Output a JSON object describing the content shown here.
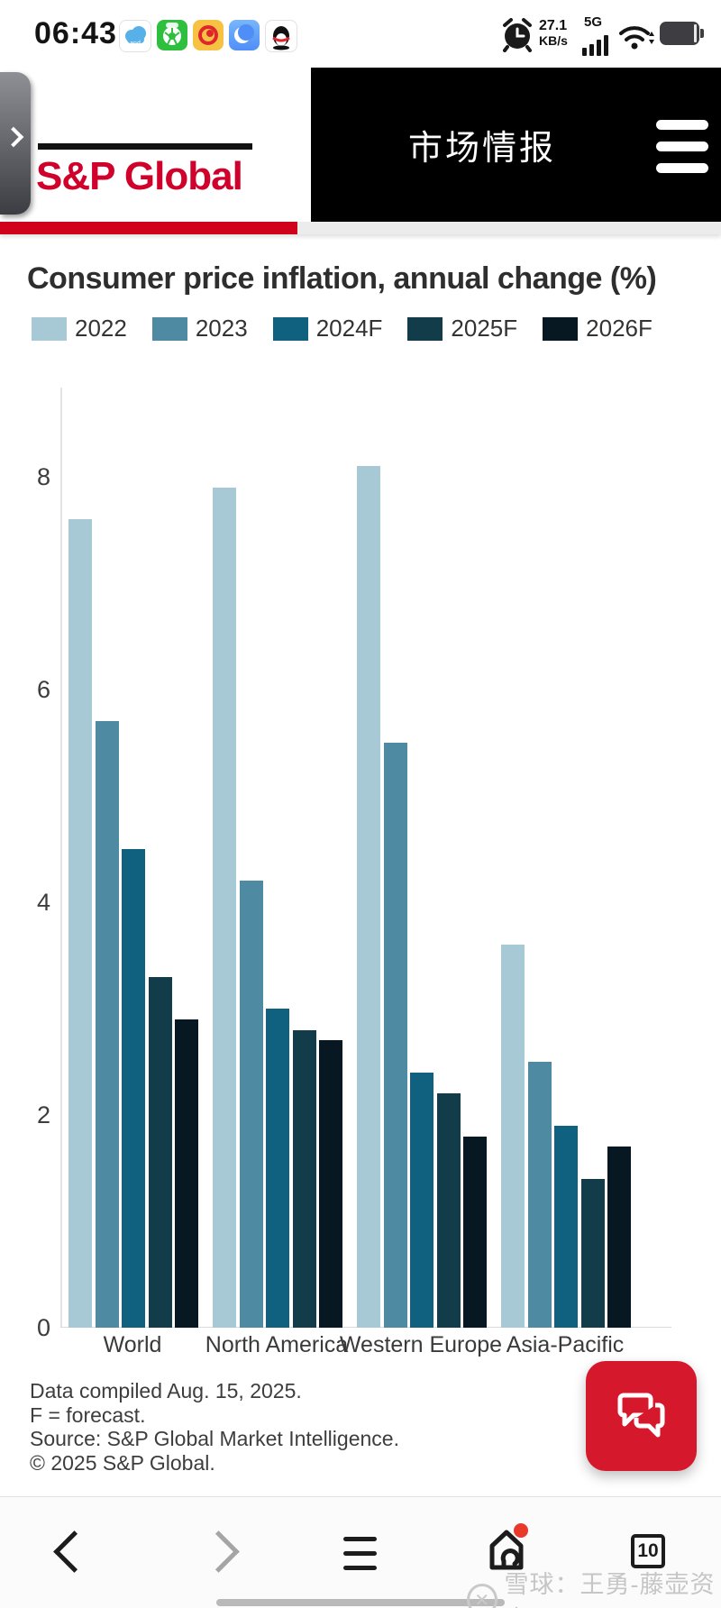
{
  "status_bar": {
    "time": "06:43",
    "network_speed_value": "27.1",
    "network_speed_unit": "KB/s",
    "network_type": "5G",
    "app_icons": [
      "cloud-app-icon",
      "green-ball-app-icon",
      "weibo-app-icon",
      "browser-app-icon",
      "qq-app-icon"
    ]
  },
  "header": {
    "logo_text": "S&P Global",
    "title": "市场情报",
    "brand_red": "#d0022b"
  },
  "chart_data": {
    "type": "bar",
    "title": "Consumer price inflation, annual change (%)",
    "categories": [
      "World",
      "North America",
      "Western Europe",
      "Asia-Pacific"
    ],
    "series": [
      {
        "name": "2022",
        "color": "#a7c9d6",
        "values": [
          7.6,
          7.9,
          8.1,
          3.6
        ]
      },
      {
        "name": "2023",
        "color": "#4e8ba2",
        "values": [
          5.7,
          4.2,
          5.5,
          2.5
        ]
      },
      {
        "name": "2024F",
        "color": "#10607f",
        "values": [
          4.5,
          3.0,
          2.4,
          1.9
        ]
      },
      {
        "name": "2025F",
        "color": "#133c4b",
        "values": [
          3.3,
          2.8,
          2.2,
          1.4
        ]
      },
      {
        "name": "2026F",
        "color": "#081822",
        "values": [
          2.9,
          2.7,
          1.8,
          1.7
        ]
      }
    ],
    "yticks": [
      0,
      2,
      4,
      6,
      8
    ],
    "ylim": [
      0,
      8.8
    ],
    "xlabel": "",
    "ylabel": "",
    "grid": false,
    "legend_position": "top",
    "footnotes": [
      "Data compiled Aug. 15, 2025.",
      "F = forecast.",
      "Source: S&P Global Market Intelligence.",
      "© 2025 S&P Global."
    ]
  },
  "bottom_nav": {
    "tab_count": "10"
  },
  "watermark": {
    "text": "雪球：王勇-藤壶资本"
  }
}
